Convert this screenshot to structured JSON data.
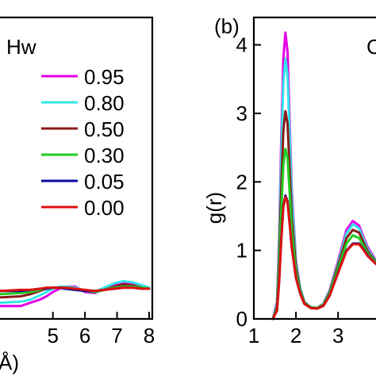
{
  "chart_data": [
    {
      "type": "line",
      "panel_label": "",
      "species_label": "Hw",
      "xlabel": "Å)",
      "ylabel": "",
      "xlim": [
        3.35,
        8.1
      ],
      "ylim": [
        -0.25,
        2.55
      ],
      "xticks": [
        "5",
        "6",
        "7",
        "8"
      ],
      "xtick_values": [
        5,
        6,
        7,
        8
      ],
      "grid": false,
      "legend_position": "right",
      "legend": [
        {
          "label": "0.95",
          "color": "#e600e6"
        },
        {
          "label": "0.80",
          "color": "#33e6e6"
        },
        {
          "label": "0.50",
          "color": "#8b1a1a"
        },
        {
          "label": "0.30",
          "color": "#22cc22"
        },
        {
          "label": "0.05",
          "color": "#0a0aa0"
        },
        {
          "label": "0.00",
          "color": "#dd1111"
        }
      ],
      "series": [
        {
          "name": "0.95",
          "color": "#e600e6",
          "x": [
            3.35,
            4.0,
            4.3,
            4.6,
            4.8,
            5.0,
            5.2,
            5.4,
            5.7,
            6.0,
            6.3,
            6.6,
            6.9,
            7.2,
            7.5,
            7.8,
            8.0
          ],
          "y": [
            -0.13,
            -0.13,
            -0.1,
            -0.07,
            -0.04,
            0.0,
            0.03,
            0.05,
            0.05,
            0.0,
            -0.01,
            0.03,
            0.07,
            0.09,
            0.08,
            0.05,
            0.03
          ]
        },
        {
          "name": "0.80",
          "color": "#33e6e6",
          "x": [
            3.35,
            4.0,
            4.3,
            4.6,
            4.8,
            5.0,
            5.2,
            5.4,
            5.7,
            6.0,
            6.3,
            6.6,
            6.9,
            7.2,
            7.5,
            7.8,
            8.0
          ],
          "y": [
            -0.1,
            -0.09,
            -0.07,
            -0.03,
            0.0,
            0.03,
            0.05,
            0.05,
            0.04,
            0.01,
            0.0,
            0.04,
            0.08,
            0.1,
            0.09,
            0.06,
            0.04
          ]
        },
        {
          "name": "0.50",
          "color": "#8b1a1a",
          "x": [
            3.35,
            4.0,
            4.3,
            4.6,
            4.8,
            5.0,
            5.2,
            5.4,
            5.7,
            6.0,
            6.3,
            6.6,
            6.9,
            7.2,
            7.5,
            7.8,
            8.0
          ],
          "y": [
            -0.05,
            -0.04,
            -0.02,
            0.01,
            0.03,
            0.04,
            0.04,
            0.04,
            0.03,
            0.01,
            0.0,
            0.02,
            0.05,
            0.07,
            0.06,
            0.04,
            0.03
          ]
        },
        {
          "name": "0.30",
          "color": "#22cc22",
          "x": [
            3.35,
            4.0,
            4.3,
            4.6,
            4.8,
            5.0,
            5.2,
            5.4,
            5.7,
            6.0,
            6.3,
            6.6,
            6.9,
            7.2,
            7.5,
            7.8,
            8.0
          ],
          "y": [
            -0.02,
            -0.01,
            0.0,
            0.02,
            0.03,
            0.04,
            0.04,
            0.03,
            0.02,
            0.01,
            0.0,
            0.02,
            0.04,
            0.05,
            0.05,
            0.04,
            0.03
          ]
        },
        {
          "name": "0.05",
          "color": "#0a0aa0",
          "x": [
            3.35,
            4.0,
            4.3,
            4.6,
            4.8,
            5.0,
            5.2,
            5.4,
            5.7,
            6.0,
            6.3,
            6.6,
            6.9,
            7.2,
            7.5,
            7.8,
            8.0
          ],
          "y": [
            0.01,
            0.01,
            0.02,
            0.03,
            0.03,
            0.04,
            0.04,
            0.03,
            0.02,
            0.01,
            0.01,
            0.02,
            0.03,
            0.04,
            0.04,
            0.03,
            0.03
          ]
        },
        {
          "name": "0.00",
          "color": "#dd1111",
          "x": [
            3.35,
            4.0,
            4.3,
            4.6,
            4.8,
            5.0,
            5.2,
            5.4,
            5.7,
            6.0,
            6.3,
            6.6,
            6.9,
            7.2,
            7.5,
            7.8,
            8.0
          ],
          "y": [
            0.01,
            0.02,
            0.02,
            0.03,
            0.04,
            0.04,
            0.04,
            0.04,
            0.03,
            0.02,
            0.01,
            0.02,
            0.03,
            0.04,
            0.04,
            0.03,
            0.03
          ]
        }
      ]
    },
    {
      "type": "line",
      "panel_label": "(b)",
      "species_label": "C",
      "xlabel": "",
      "ylabel": "g(r)",
      "xlim": [
        1.0,
        3.9
      ],
      "ylim": [
        0,
        4.4
      ],
      "xticks": [
        "1",
        "2",
        "3"
      ],
      "xtick_values": [
        1,
        2,
        3
      ],
      "yticks": [
        "0",
        "1",
        "2",
        "3",
        "4"
      ],
      "ytick_values": [
        0,
        1,
        2,
        3,
        4
      ],
      "grid": false,
      "series": [
        {
          "name": "0.95",
          "color": "#e600e6",
          "x": [
            1.45,
            1.55,
            1.6,
            1.65,
            1.7,
            1.75,
            1.8,
            1.85,
            1.9,
            2.0,
            2.1,
            2.2,
            2.35,
            2.5,
            2.65,
            2.8,
            3.0,
            3.2,
            3.35,
            3.5,
            3.6,
            3.7,
            3.9
          ],
          "y": [
            0.0,
            0.25,
            1.2,
            2.6,
            3.8,
            4.18,
            3.9,
            2.9,
            1.9,
            0.85,
            0.45,
            0.25,
            0.17,
            0.16,
            0.22,
            0.42,
            0.85,
            1.3,
            1.43,
            1.36,
            1.2,
            1.05,
            0.85
          ]
        },
        {
          "name": "0.80",
          "color": "#33e6e6",
          "x": [
            1.45,
            1.55,
            1.6,
            1.65,
            1.7,
            1.75,
            1.8,
            1.85,
            1.9,
            2.0,
            2.1,
            2.2,
            2.35,
            2.5,
            2.65,
            2.8,
            3.0,
            3.2,
            3.35,
            3.5,
            3.6,
            3.7,
            3.9
          ],
          "y": [
            0.0,
            0.22,
            1.1,
            2.35,
            3.45,
            3.8,
            3.55,
            2.7,
            1.8,
            0.82,
            0.45,
            0.25,
            0.17,
            0.16,
            0.22,
            0.41,
            0.82,
            1.25,
            1.38,
            1.32,
            1.17,
            1.02,
            0.84
          ]
        },
        {
          "name": "0.50",
          "color": "#8b1a1a",
          "x": [
            1.45,
            1.55,
            1.6,
            1.65,
            1.7,
            1.75,
            1.8,
            1.85,
            1.9,
            2.0,
            2.1,
            2.2,
            2.35,
            2.5,
            2.65,
            2.8,
            3.0,
            3.2,
            3.35,
            3.5,
            3.6,
            3.7,
            3.9
          ],
          "y": [
            0.0,
            0.18,
            0.9,
            1.9,
            2.75,
            3.03,
            2.85,
            2.2,
            1.5,
            0.75,
            0.42,
            0.24,
            0.17,
            0.16,
            0.21,
            0.39,
            0.78,
            1.18,
            1.3,
            1.26,
            1.12,
            0.99,
            0.83
          ]
        },
        {
          "name": "0.30",
          "color": "#22cc22",
          "x": [
            1.45,
            1.55,
            1.6,
            1.65,
            1.7,
            1.75,
            1.8,
            1.85,
            1.9,
            2.0,
            2.1,
            2.2,
            2.35,
            2.5,
            2.65,
            2.8,
            3.0,
            3.2,
            3.35,
            3.5,
            3.6,
            3.7,
            3.9
          ],
          "y": [
            0.0,
            0.15,
            0.75,
            1.55,
            2.25,
            2.48,
            2.35,
            1.85,
            1.3,
            0.68,
            0.4,
            0.23,
            0.17,
            0.16,
            0.2,
            0.37,
            0.74,
            1.1,
            1.22,
            1.18,
            1.07,
            0.96,
            0.82
          ]
        },
        {
          "name": "0.05",
          "color": "#0a0aa0",
          "x": [
            1.45,
            1.55,
            1.6,
            1.65,
            1.7,
            1.75,
            1.8,
            1.85,
            1.9,
            2.0,
            2.1,
            2.2,
            2.35,
            2.5,
            2.65,
            2.8,
            3.0,
            3.2,
            3.35,
            3.5,
            3.6,
            3.7,
            3.9
          ],
          "y": [
            0.0,
            0.12,
            0.55,
            1.15,
            1.65,
            1.8,
            1.72,
            1.4,
            1.05,
            0.6,
            0.37,
            0.22,
            0.16,
            0.15,
            0.19,
            0.34,
            0.68,
            1.0,
            1.1,
            1.1,
            1.02,
            0.93,
            0.8
          ]
        },
        {
          "name": "0.00",
          "color": "#dd1111",
          "x": [
            1.45,
            1.55,
            1.6,
            1.65,
            1.7,
            1.75,
            1.8,
            1.85,
            1.9,
            2.0,
            2.1,
            2.2,
            2.35,
            2.5,
            2.65,
            2.8,
            3.0,
            3.2,
            3.35,
            3.5,
            3.6,
            3.7,
            3.9
          ],
          "y": [
            0.0,
            0.12,
            0.54,
            1.13,
            1.63,
            1.78,
            1.7,
            1.39,
            1.04,
            0.6,
            0.37,
            0.22,
            0.16,
            0.15,
            0.19,
            0.34,
            0.67,
            0.99,
            1.09,
            1.09,
            1.01,
            0.92,
            0.8
          ]
        }
      ]
    }
  ]
}
